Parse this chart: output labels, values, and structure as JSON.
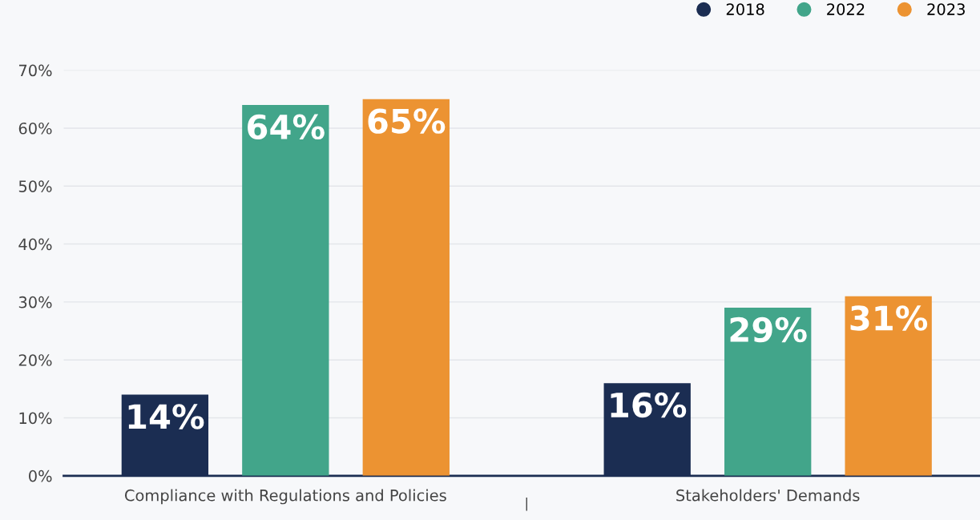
{
  "chart_data": {
    "type": "bar",
    "categories": [
      "Compliance with Regulations and Policies",
      "Stakeholders' Demands"
    ],
    "series": [
      {
        "name": "2018",
        "color": "#1b2d52",
        "values": [
          14,
          16
        ],
        "value_labels": [
          "14%",
          "16%"
        ]
      },
      {
        "name": "2022",
        "color": "#42a58a",
        "values": [
          64,
          29
        ],
        "value_labels": [
          "64%",
          "29%"
        ]
      },
      {
        "name": "2023",
        "color": "#ec9332",
        "values": [
          65,
          31
        ],
        "value_labels": [
          "65%",
          "31%"
        ]
      }
    ],
    "ylim": [
      0,
      70
    ],
    "yticks": [
      {
        "value": 0,
        "label": "0%"
      },
      {
        "value": 10,
        "label": "10%"
      },
      {
        "value": 20,
        "label": "20%"
      },
      {
        "value": 30,
        "label": "30%"
      },
      {
        "value": 40,
        "label": "40%"
      },
      {
        "value": 50,
        "label": "50%"
      },
      {
        "value": 60,
        "label": "60%"
      },
      {
        "value": 70,
        "label": "70%"
      }
    ],
    "grid": "y",
    "legend": "top right",
    "marker": "circle"
  }
}
